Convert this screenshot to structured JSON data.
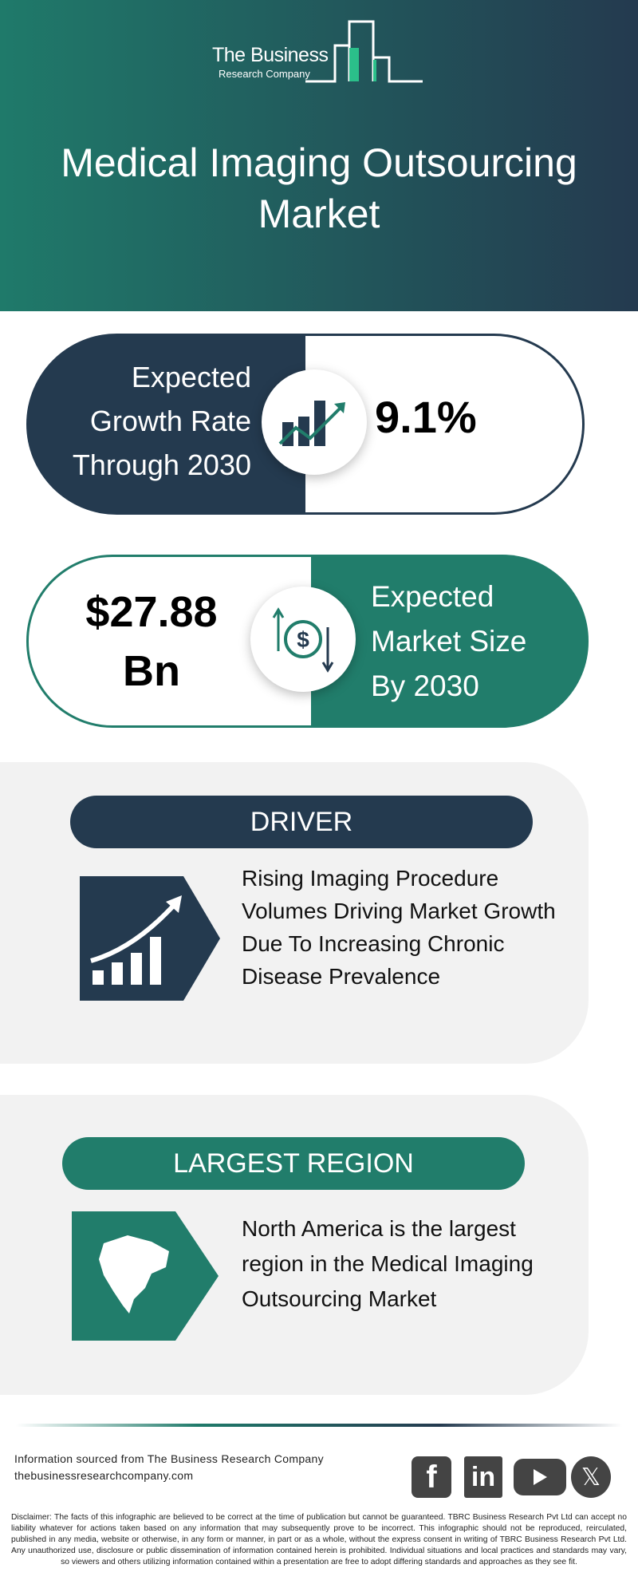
{
  "header": {
    "logo_line1": "The Business",
    "logo_line2": "Research Company",
    "title_line1": "Medical Imaging Outsourcing",
    "title_line2": "Market",
    "gradient": [
      "#1f7a6a",
      "#243a4f"
    ]
  },
  "growth": {
    "label_lines": [
      "Expected",
      "Growth Rate",
      "Through 2030"
    ],
    "value": "9.1%",
    "icon": "growth-chart-icon"
  },
  "market_size": {
    "value_lines": [
      "$27.88",
      "Bn"
    ],
    "label_lines": [
      "Expected",
      "Market Size",
      "By 2030"
    ],
    "icon": "dollar-exchange-icon"
  },
  "driver": {
    "heading": "DRIVER",
    "text_lines": [
      "Rising Imaging Procedure",
      "Volumes Driving Market Growth",
      "Due To Increasing Chronic",
      "Disease Prevalence"
    ],
    "icon": "rising-bar-chart-icon"
  },
  "region": {
    "heading": "LARGEST REGION",
    "text_lines": [
      "North America is the largest",
      "region in the Medical Imaging",
      "Outsourcing Market"
    ],
    "icon": "north-america-map-icon"
  },
  "footer": {
    "source": "Information sourced from The Business Research Company",
    "website": "thebusinessresearchcompany.com",
    "social": [
      "facebook",
      "linkedin",
      "youtube",
      "x"
    ],
    "disclaimer": "Disclaimer: The facts of this infographic are believed to be correct at the time of publication but cannot be guaranteed. TBRC Business Research Pvt Ltd can accept no liability whatever for actions taken based on any information that may subsequently prove to be incorrect. This infographic should not be reproduced, reirculated, published in any media, website or otherwise, in any form or manner, in part or as a whole, without the express consent in writing of TBRC Business Research Pvt Ltd. Any unauthorized use, disclosure or public dissemination of information contained herein is prohibited. Individual situations and local practices and standards may vary, so viewers and others utilizing information contained within a presentation are free to adopt differing standards and approaches as they see fit."
  },
  "colors": {
    "navy": "#243a4f",
    "teal": "#217d6b",
    "panel": "#f2f2f2"
  }
}
